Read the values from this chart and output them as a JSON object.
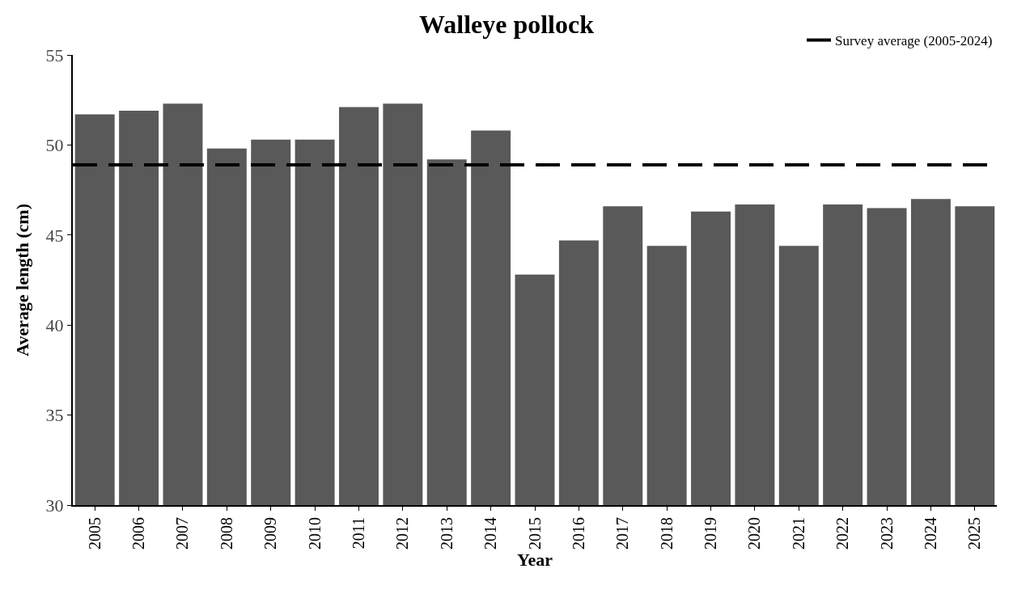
{
  "chart_data": {
    "type": "bar",
    "title": "Walleye pollock",
    "xlabel": "Year",
    "ylabel": "Average length (cm)",
    "categories": [
      "2005",
      "2006",
      "2007",
      "2008",
      "2009",
      "2010",
      "2011",
      "2012",
      "2013",
      "2014",
      "2015",
      "2016",
      "2017",
      "2018",
      "2019",
      "2020",
      "2021",
      "2022",
      "2023",
      "2024",
      "2025"
    ],
    "series": [
      {
        "color": "#595959",
        "values": [
          51.7,
          51.9,
          52.3,
          49.8,
          50.3,
          50.3,
          52.1,
          52.3,
          49.2,
          50.8,
          42.8,
          44.7,
          46.6,
          44.4,
          46.3,
          46.7,
          44.4,
          46.7,
          46.5,
          47.0,
          46.6
        ]
      }
    ],
    "ylim": [
      30,
      55
    ],
    "yticks": [
      30,
      35,
      40,
      45,
      50,
      55
    ],
    "ref_lines": [
      {
        "axis": "y",
        "value": 48.9,
        "label": "Survey average (2005-2024)",
        "color": "#000000",
        "line_style": "dashed"
      }
    ],
    "legend": "top right"
  }
}
